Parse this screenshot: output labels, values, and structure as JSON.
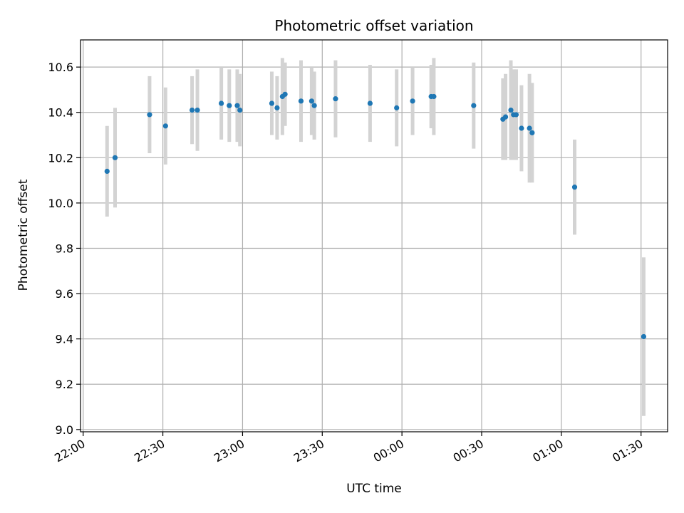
{
  "chart_data": {
    "type": "scatter",
    "title": "Photometric offset variation",
    "xlabel": "UTC time",
    "ylabel": "Photometric offset",
    "grid": true,
    "xlim": [
      "21:59",
      "01:40"
    ],
    "ylim": [
      8.99,
      10.72
    ],
    "x_ticks": [
      "22:00",
      "22:30",
      "23:00",
      "23:30",
      "00:00",
      "00:30",
      "01:00",
      "01:30"
    ],
    "y_ticks": [
      "9.0",
      "9.2",
      "9.4",
      "9.6",
      "9.8",
      "10.0",
      "10.2",
      "10.4",
      "10.6"
    ],
    "colors": {
      "point": "#1f77b4",
      "errorbar": "#d3d3d3",
      "grid": "#b0b0b0"
    },
    "points": [
      {
        "x": "22:09",
        "y": 10.14,
        "err": 0.2
      },
      {
        "x": "22:12",
        "y": 10.2,
        "err": 0.22
      },
      {
        "x": "22:25",
        "y": 10.39,
        "err": 0.17
      },
      {
        "x": "22:31",
        "y": 10.34,
        "err": 0.17
      },
      {
        "x": "22:41",
        "y": 10.41,
        "err": 0.15
      },
      {
        "x": "22:43",
        "y": 10.41,
        "err": 0.18
      },
      {
        "x": "22:52",
        "y": 10.44,
        "err": 0.16
      },
      {
        "x": "22:55",
        "y": 10.43,
        "err": 0.16
      },
      {
        "x": "22:58",
        "y": 10.43,
        "err": 0.16
      },
      {
        "x": "22:59",
        "y": 10.41,
        "err": 0.16
      },
      {
        "x": "23:11",
        "y": 10.44,
        "err": 0.14
      },
      {
        "x": "23:13",
        "y": 10.42,
        "err": 0.14
      },
      {
        "x": "23:15",
        "y": 10.47,
        "err": 0.17
      },
      {
        "x": "23:16",
        "y": 10.48,
        "err": 0.14
      },
      {
        "x": "23:22",
        "y": 10.45,
        "err": 0.18
      },
      {
        "x": "23:26",
        "y": 10.45,
        "err": 0.15
      },
      {
        "x": "23:27",
        "y": 10.43,
        "err": 0.15
      },
      {
        "x": "23:35",
        "y": 10.46,
        "err": 0.17
      },
      {
        "x": "23:48",
        "y": 10.44,
        "err": 0.17
      },
      {
        "x": "23:58",
        "y": 10.42,
        "err": 0.17
      },
      {
        "x": "00:04",
        "y": 10.45,
        "err": 0.15
      },
      {
        "x": "00:11",
        "y": 10.47,
        "err": 0.14
      },
      {
        "x": "00:12",
        "y": 10.47,
        "err": 0.17
      },
      {
        "x": "00:27",
        "y": 10.43,
        "err": 0.19
      },
      {
        "x": "00:38",
        "y": 10.37,
        "err": 0.18
      },
      {
        "x": "00:39",
        "y": 10.38,
        "err": 0.19
      },
      {
        "x": "00:41",
        "y": 10.41,
        "err": 0.22
      },
      {
        "x": "00:42",
        "y": 10.39,
        "err": 0.2
      },
      {
        "x": "00:43",
        "y": 10.39,
        "err": 0.2
      },
      {
        "x": "00:45",
        "y": 10.33,
        "err": 0.19
      },
      {
        "x": "00:48",
        "y": 10.33,
        "err": 0.24
      },
      {
        "x": "00:49",
        "y": 10.31,
        "err": 0.22
      },
      {
        "x": "01:05",
        "y": 10.07,
        "err": 0.21
      },
      {
        "x": "01:31",
        "y": 9.41,
        "err": 0.35
      }
    ]
  }
}
